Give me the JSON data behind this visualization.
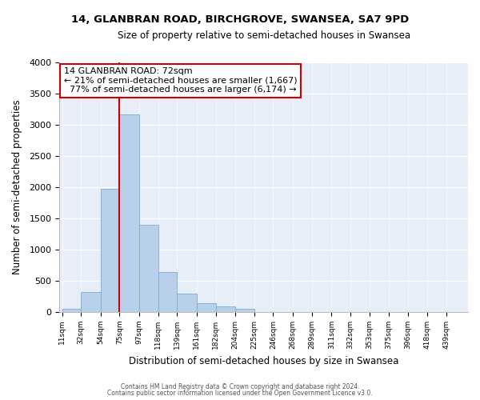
{
  "title": "14, GLANBRAN ROAD, BIRCHGROVE, SWANSEA, SA7 9PD",
  "subtitle": "Size of property relative to semi-detached houses in Swansea",
  "xlabel": "Distribution of semi-detached houses by size in Swansea",
  "ylabel": "Number of semi-detached properties",
  "bin_labels": [
    "11sqm",
    "32sqm",
    "54sqm",
    "75sqm",
    "97sqm",
    "118sqm",
    "139sqm",
    "161sqm",
    "182sqm",
    "204sqm",
    "225sqm",
    "246sqm",
    "268sqm",
    "289sqm",
    "311sqm",
    "332sqm",
    "353sqm",
    "375sqm",
    "396sqm",
    "418sqm",
    "439sqm"
  ],
  "bin_left_edges": [
    11,
    32,
    54,
    75,
    97,
    118,
    139,
    161,
    182,
    204,
    225,
    246,
    268,
    289,
    311,
    332,
    353,
    375,
    396,
    418,
    439
  ],
  "bin_widths": [
    21,
    22,
    21,
    22,
    21,
    21,
    22,
    21,
    22,
    21,
    21,
    22,
    21,
    22,
    21,
    21,
    22,
    21,
    22,
    21,
    21
  ],
  "bar_heights": [
    55,
    325,
    1975,
    3170,
    1400,
    645,
    300,
    140,
    95,
    50,
    5,
    0,
    0,
    0,
    0,
    0,
    0,
    0,
    0,
    0,
    0
  ],
  "bar_color": "#b8d0ea",
  "bar_edgecolor": "#7aadd4",
  "vline_x": 75,
  "vline_color": "#cc0000",
  "annotation_title": "14 GLANBRAN ROAD: 72sqm",
  "annotation_line1": "← 21% of semi-detached houses are smaller (1,667)",
  "annotation_line2": "  77% of semi-detached houses are larger (6,174) →",
  "annotation_box_color": "#cc0000",
  "annotation_bg": "#ffffff",
  "ylim": [
    0,
    4000
  ],
  "yticks": [
    0,
    500,
    1000,
    1500,
    2000,
    2500,
    3000,
    3500,
    4000
  ],
  "bg_color": "#e8eef8",
  "fig_bg_color": "#ffffff",
  "footer1": "Contains HM Land Registry data © Crown copyright and database right 2024.",
  "footer2": "Contains public sector information licensed under the Open Government Licence v3.0."
}
